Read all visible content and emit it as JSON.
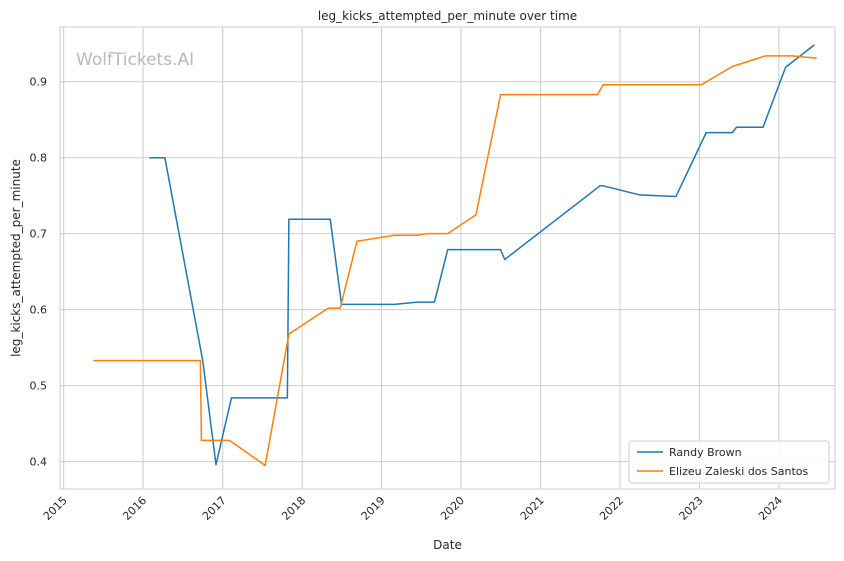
{
  "chart_data": {
    "type": "line",
    "title": "leg_kicks_attempted_per_minute over time",
    "xlabel": "Date",
    "ylabel": "leg_kicks_attempted_per_minute",
    "watermark": "WolfTickets.AI",
    "xlim": [
      "2014-12-15",
      "2024-09-15"
    ],
    "ylim": [
      0.364,
      0.972
    ],
    "x_ticks": [
      "2015-01-01",
      "2016-01-01",
      "2017-01-01",
      "2018-01-01",
      "2019-01-01",
      "2020-01-01",
      "2021-01-01",
      "2022-01-01",
      "2023-01-01",
      "2024-01-01"
    ],
    "x_tick_labels": [
      "2015",
      "2016",
      "2017",
      "2018",
      "2019",
      "2020",
      "2021",
      "2022",
      "2023",
      "2024"
    ],
    "y_ticks": [
      0.4,
      0.5,
      0.6,
      0.7,
      0.8,
      0.9
    ],
    "y_tick_labels": [
      "0.4",
      "0.5",
      "0.6",
      "0.7",
      "0.8",
      "0.9"
    ],
    "grid": true,
    "legend_position": "bottom-right",
    "series": [
      {
        "name": "Randy Brown",
        "color": "#1f77b4",
        "points": [
          [
            "2016-02-01",
            0.8
          ],
          [
            "2016-04-10",
            0.8
          ],
          [
            "2016-10-01",
            0.533
          ],
          [
            "2016-12-01",
            0.396
          ],
          [
            "2017-02-10",
            0.484
          ],
          [
            "2017-10-25",
            0.484
          ],
          [
            "2017-11-01",
            0.719
          ],
          [
            "2018-05-10",
            0.719
          ],
          [
            "2018-07-01",
            0.607
          ],
          [
            "2019-03-01",
            0.607
          ],
          [
            "2019-06-15",
            0.61
          ],
          [
            "2019-09-01",
            0.61
          ],
          [
            "2019-11-01",
            0.679
          ],
          [
            "2020-07-01",
            0.679
          ],
          [
            "2020-07-20",
            0.666
          ],
          [
            "2021-10-01",
            0.763
          ],
          [
            "2021-10-15",
            0.763
          ],
          [
            "2022-04-01",
            0.751
          ],
          [
            "2022-09-15",
            0.749
          ],
          [
            "2023-02-01",
            0.833
          ],
          [
            "2023-06-01",
            0.833
          ],
          [
            "2023-06-20",
            0.84
          ],
          [
            "2023-10-20",
            0.84
          ],
          [
            "2024-02-01",
            0.919
          ],
          [
            "2024-06-10",
            0.948
          ]
        ]
      },
      {
        "name": "Elizeu Zaleski dos Santos",
        "color": "#ff7f0e",
        "points": [
          [
            "2015-05-20",
            0.533
          ],
          [
            "2016-09-20",
            0.533
          ],
          [
            "2016-09-25",
            0.428
          ],
          [
            "2017-02-01",
            0.428
          ],
          [
            "2017-07-15",
            0.395
          ],
          [
            "2017-11-01",
            0.568
          ],
          [
            "2018-05-01",
            0.602
          ],
          [
            "2018-06-25",
            0.602
          ],
          [
            "2018-09-10",
            0.69
          ],
          [
            "2019-03-01",
            0.698
          ],
          [
            "2019-06-15",
            0.698
          ],
          [
            "2019-08-01",
            0.7
          ],
          [
            "2019-11-01",
            0.7
          ],
          [
            "2020-03-10",
            0.725
          ],
          [
            "2020-07-01",
            0.883
          ],
          [
            "2021-09-20",
            0.883
          ],
          [
            "2021-10-15",
            0.896
          ],
          [
            "2023-01-10",
            0.896
          ],
          [
            "2023-06-01",
            0.92
          ],
          [
            "2023-11-01",
            0.934
          ],
          [
            "2024-03-01",
            0.934
          ],
          [
            "2024-06-20",
            0.931
          ]
        ]
      }
    ]
  }
}
